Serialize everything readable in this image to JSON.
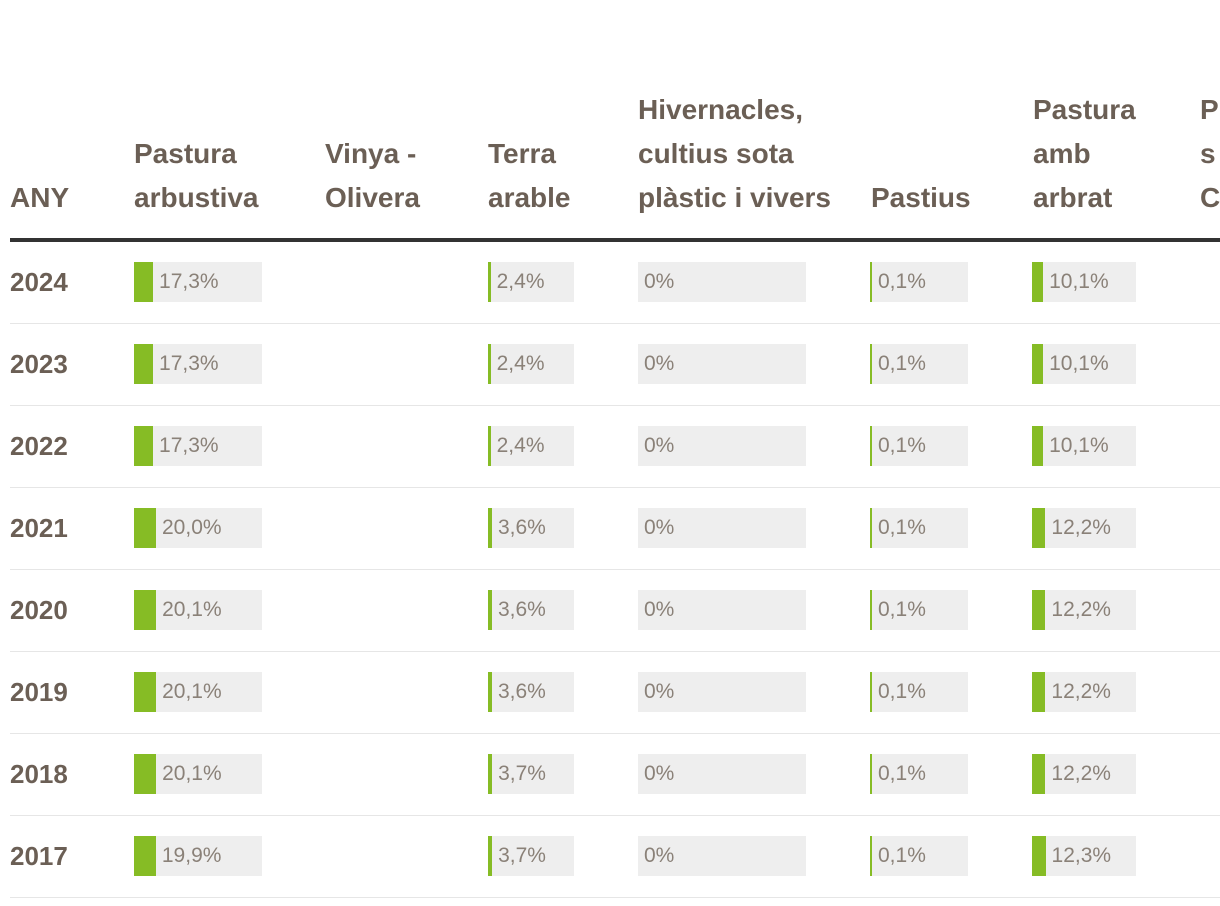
{
  "colors": {
    "bar_fill": "#86bc25",
    "bar_bg": "#eeeeee",
    "header_text": "#6b5f55",
    "value_text": "#8a8178",
    "header_rule": "#333333"
  },
  "columns": [
    {
      "key": "any",
      "label": "ANY"
    },
    {
      "key": "pastura_arbustiva",
      "label": "Pastura arbustiva"
    },
    {
      "key": "vinya_olivera",
      "label": "Vinya - Olivera"
    },
    {
      "key": "terra_arable",
      "label": "Terra arable"
    },
    {
      "key": "hivernacles",
      "label": "Hivernacles, cultius sota plàstic i vivers"
    },
    {
      "key": "pastius",
      "label": "Pastius"
    },
    {
      "key": "pastura_arbrat",
      "label": "Pastura amb arbrat"
    },
    {
      "key": "partial",
      "label": "P s C"
    }
  ],
  "rows": [
    {
      "year": "2024",
      "pastura_arbustiva": "17,3%",
      "pastura_arbustiva_pct": 17.3,
      "terra_arable": "2,4%",
      "terra_arable_pct": 2.4,
      "hivernacles": "0%",
      "hivernacles_pct": 0,
      "pastius": "0,1%",
      "pastius_pct": 0.1,
      "pastura_arbrat": "10,1%",
      "pastura_arbrat_pct": 10.1
    },
    {
      "year": "2023",
      "pastura_arbustiva": "17,3%",
      "pastura_arbustiva_pct": 17.3,
      "terra_arable": "2,4%",
      "terra_arable_pct": 2.4,
      "hivernacles": "0%",
      "hivernacles_pct": 0,
      "pastius": "0,1%",
      "pastius_pct": 0.1,
      "pastura_arbrat": "10,1%",
      "pastura_arbrat_pct": 10.1
    },
    {
      "year": "2022",
      "pastura_arbustiva": "17,3%",
      "pastura_arbustiva_pct": 17.3,
      "terra_arable": "2,4%",
      "terra_arable_pct": 2.4,
      "hivernacles": "0%",
      "hivernacles_pct": 0,
      "pastius": "0,1%",
      "pastius_pct": 0.1,
      "pastura_arbrat": "10,1%",
      "pastura_arbrat_pct": 10.1
    },
    {
      "year": "2021",
      "pastura_arbustiva": "20,0%",
      "pastura_arbustiva_pct": 20.0,
      "terra_arable": "3,6%",
      "terra_arable_pct": 3.6,
      "hivernacles": "0%",
      "hivernacles_pct": 0,
      "pastius": "0,1%",
      "pastius_pct": 0.1,
      "pastura_arbrat": "12,2%",
      "pastura_arbrat_pct": 12.2
    },
    {
      "year": "2020",
      "pastura_arbustiva": "20,1%",
      "pastura_arbustiva_pct": 20.1,
      "terra_arable": "3,6%",
      "terra_arable_pct": 3.6,
      "hivernacles": "0%",
      "hivernacles_pct": 0,
      "pastius": "0,1%",
      "pastius_pct": 0.1,
      "pastura_arbrat": "12,2%",
      "pastura_arbrat_pct": 12.2
    },
    {
      "year": "2019",
      "pastura_arbustiva": "20,1%",
      "pastura_arbustiva_pct": 20.1,
      "terra_arable": "3,6%",
      "terra_arable_pct": 3.6,
      "hivernacles": "0%",
      "hivernacles_pct": 0,
      "pastius": "0,1%",
      "pastius_pct": 0.1,
      "pastura_arbrat": "12,2%",
      "pastura_arbrat_pct": 12.2
    },
    {
      "year": "2018",
      "pastura_arbustiva": "20,1%",
      "pastura_arbustiva_pct": 20.1,
      "terra_arable": "3,7%",
      "terra_arable_pct": 3.7,
      "hivernacles": "0%",
      "hivernacles_pct": 0,
      "pastius": "0,1%",
      "pastius_pct": 0.1,
      "pastura_arbrat": "12,2%",
      "pastura_arbrat_pct": 12.2
    },
    {
      "year": "2017",
      "pastura_arbustiva": "19,9%",
      "pastura_arbustiva_pct": 19.9,
      "terra_arable": "3,7%",
      "terra_arable_pct": 3.7,
      "hivernacles": "0%",
      "hivernacles_pct": 0,
      "pastius": "0,1%",
      "pastius_pct": 0.1,
      "pastura_arbrat": "12,3%",
      "pastura_arbrat_pct": 12.3
    }
  ]
}
